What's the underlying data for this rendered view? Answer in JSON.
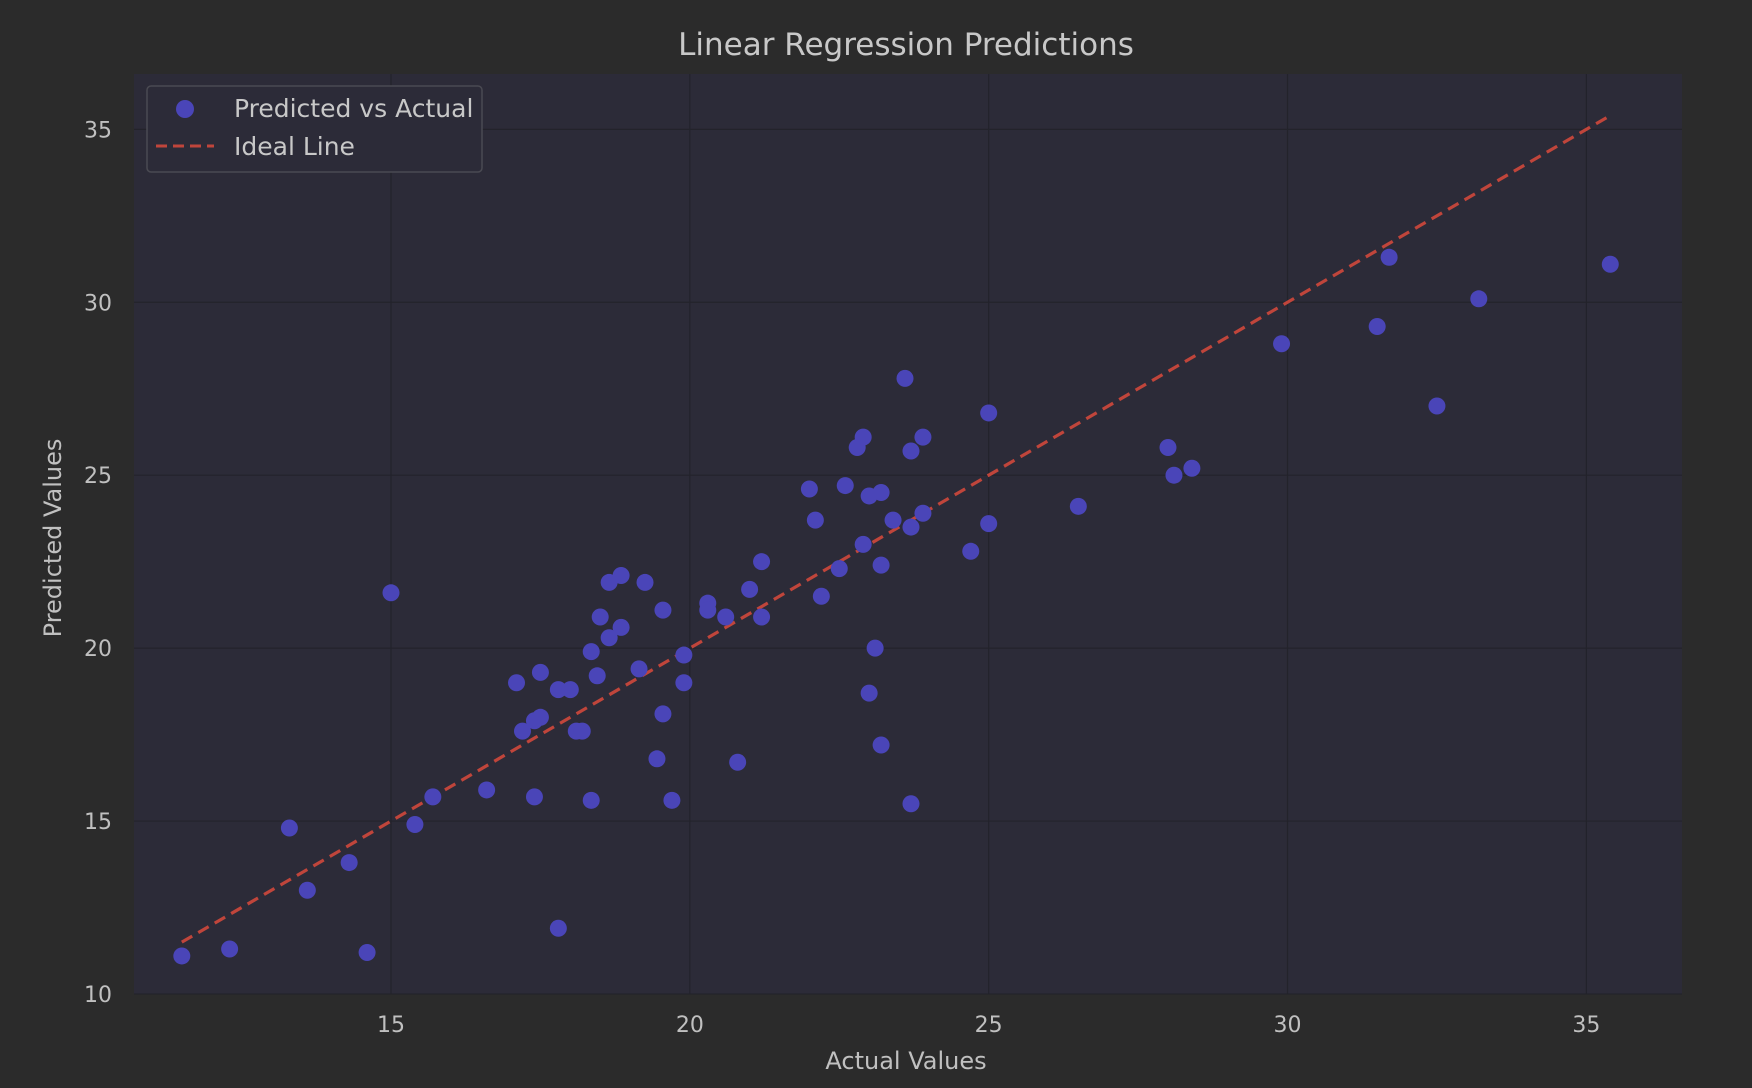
{
  "colors": {
    "figure_background": "#2b2b2b",
    "axes_background": "#2c2b38",
    "grid": "#23232b",
    "points": "#4a45b8",
    "ideal_line": "#c0453b",
    "text": "#c0c0c0"
  },
  "chart_data": {
    "type": "scatter",
    "title": "Linear Regression Predictions",
    "xlabel": "Actual Values",
    "ylabel": "Predicted Values",
    "xlim": [
      10.7,
      36.6
    ],
    "ylim": [
      10,
      36.6
    ],
    "xticks": [
      15,
      20,
      25,
      30,
      35
    ],
    "yticks": [
      10,
      15,
      20,
      25,
      30,
      35
    ],
    "grid": true,
    "legend": {
      "location": "top-left",
      "entries": [
        "Predicted vs Actual",
        "Ideal Line"
      ]
    },
    "series": [
      {
        "name": "Predicted vs Actual",
        "kind": "scatter",
        "color": "#4a45b8",
        "points": [
          [
            11.5,
            11.1
          ],
          [
            12.3,
            11.3
          ],
          [
            13.3,
            14.8
          ],
          [
            13.6,
            13.0
          ],
          [
            14.3,
            13.8
          ],
          [
            14.6,
            11.2
          ],
          [
            15.0,
            21.6
          ],
          [
            15.4,
            14.9
          ],
          [
            15.7,
            15.7
          ],
          [
            16.6,
            15.9
          ],
          [
            17.1,
            19.0
          ],
          [
            17.2,
            17.6
          ],
          [
            17.4,
            17.9
          ],
          [
            17.4,
            15.7
          ],
          [
            17.5,
            18.0
          ],
          [
            17.5,
            19.3
          ],
          [
            17.8,
            18.8
          ],
          [
            17.8,
            11.9
          ],
          [
            18.0,
            18.8
          ],
          [
            18.1,
            17.6
          ],
          [
            18.2,
            17.6
          ],
          [
            18.35,
            19.9
          ],
          [
            18.35,
            15.6
          ],
          [
            18.45,
            19.2
          ],
          [
            18.5,
            20.9
          ],
          [
            18.65,
            21.9
          ],
          [
            18.65,
            20.3
          ],
          [
            18.85,
            22.1
          ],
          [
            18.85,
            20.6
          ],
          [
            19.15,
            19.4
          ],
          [
            19.25,
            21.9
          ],
          [
            19.45,
            16.8
          ],
          [
            19.55,
            21.1
          ],
          [
            19.55,
            18.1
          ],
          [
            19.7,
            15.6
          ],
          [
            19.9,
            19.8
          ],
          [
            19.9,
            19.0
          ],
          [
            20.3,
            21.3
          ],
          [
            20.3,
            21.1
          ],
          [
            20.6,
            20.9
          ],
          [
            20.8,
            16.7
          ],
          [
            21.0,
            21.7
          ],
          [
            21.2,
            22.5
          ],
          [
            21.2,
            20.9
          ],
          [
            22.0,
            24.6
          ],
          [
            22.1,
            23.7
          ],
          [
            22.2,
            21.5
          ],
          [
            22.5,
            22.3
          ],
          [
            22.6,
            24.7
          ],
          [
            22.8,
            25.8
          ],
          [
            22.9,
            26.1
          ],
          [
            22.9,
            23.0
          ],
          [
            23.0,
            24.4
          ],
          [
            23.0,
            18.7
          ],
          [
            23.1,
            20.0
          ],
          [
            23.2,
            24.5
          ],
          [
            23.2,
            22.4
          ],
          [
            23.2,
            17.2
          ],
          [
            23.4,
            23.7
          ],
          [
            23.6,
            27.8
          ],
          [
            23.7,
            25.7
          ],
          [
            23.7,
            23.5
          ],
          [
            23.7,
            15.5
          ],
          [
            23.9,
            26.1
          ],
          [
            23.9,
            23.9
          ],
          [
            24.7,
            22.8
          ],
          [
            25.0,
            26.8
          ],
          [
            25.0,
            23.6
          ],
          [
            26.5,
            24.1
          ],
          [
            28.0,
            25.8
          ],
          [
            28.1,
            25.0
          ],
          [
            28.4,
            25.2
          ],
          [
            29.9,
            28.8
          ],
          [
            31.5,
            29.3
          ],
          [
            31.7,
            31.3
          ],
          [
            32.5,
            27.0
          ],
          [
            33.2,
            30.1
          ],
          [
            35.4,
            31.1
          ]
        ]
      },
      {
        "name": "Ideal Line",
        "kind": "line",
        "style": "dashed",
        "color": "#c0453b",
        "points": [
          [
            11.5,
            11.5
          ],
          [
            35.4,
            35.4
          ]
        ]
      }
    ]
  }
}
